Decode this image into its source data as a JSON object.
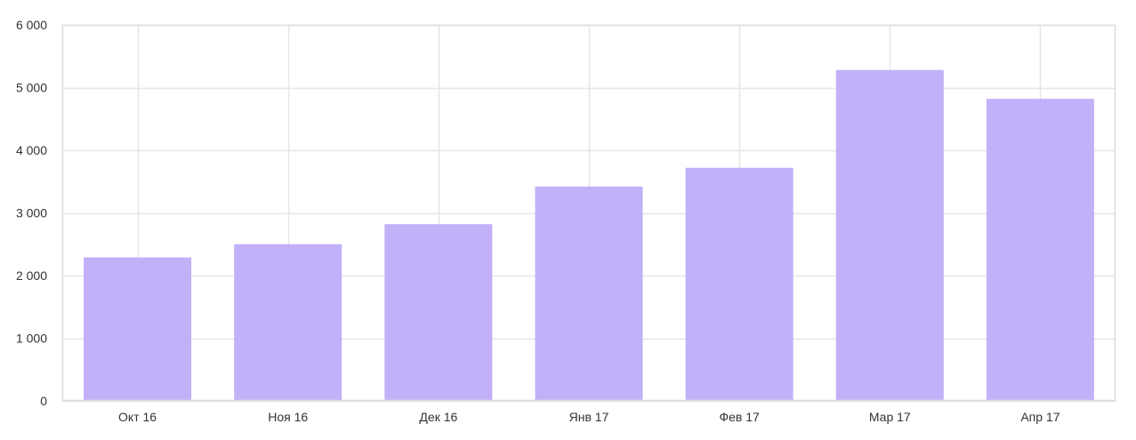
{
  "chart_data": {
    "type": "bar",
    "categories": [
      "Окт 16",
      "Ноя 16",
      "Дек 16",
      "Янв 17",
      "Фев 17",
      "Мар 17",
      "Апр 17"
    ],
    "values": [
      2290,
      2500,
      2820,
      3420,
      3720,
      5280,
      4820
    ],
    "title": "",
    "xlabel": "",
    "ylabel": "",
    "ylim": [
      0,
      6000
    ],
    "yticks": [
      0,
      1000,
      2000,
      3000,
      4000,
      5000,
      6000
    ],
    "ytick_labels": [
      "0",
      "1 000",
      "2 000",
      "3 000",
      "4 000",
      "5 000",
      "6 000"
    ],
    "grid": true,
    "legend": "none",
    "colors": {
      "bar": "#c2b0f9",
      "grid": "#e6e6e6",
      "axis": "#dddddd",
      "label": "#333333"
    }
  }
}
